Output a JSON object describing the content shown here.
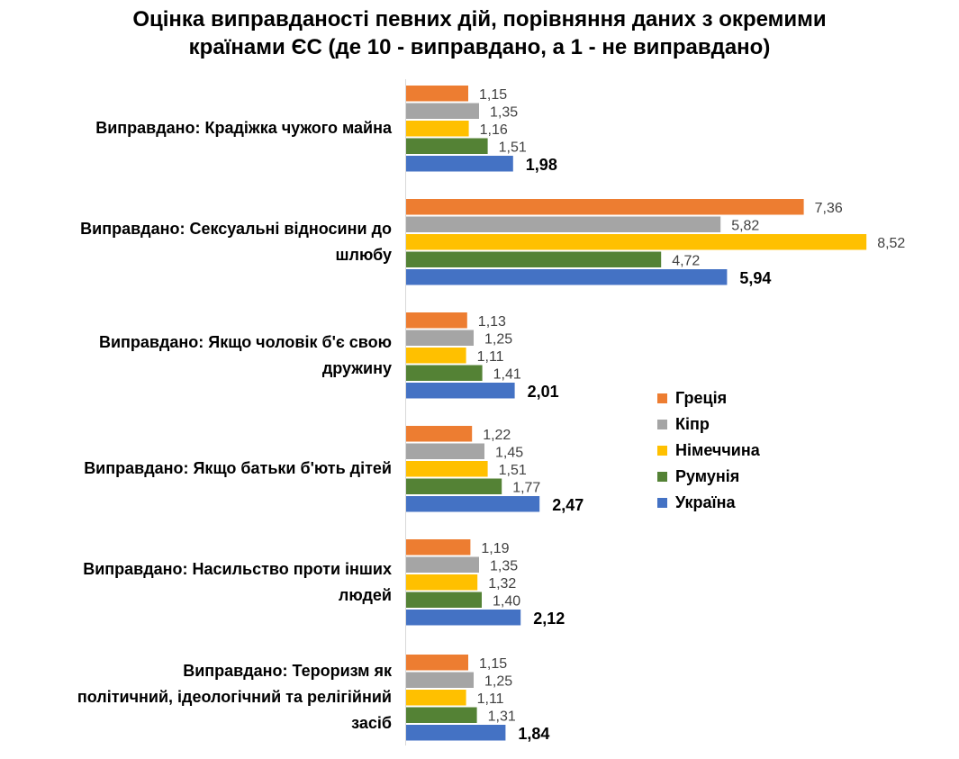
{
  "chart_data": {
    "type": "bar",
    "orientation": "horizontal",
    "title_lines": [
      "Оцінка виправданості певних дій, порівняння даних з окремими",
      "країнами ЄС (де 10 - виправдано, а 1 - не виправдано)"
    ],
    "categories": [
      [
        "Виправдано: Крадіжка чужого майна"
      ],
      [
        "Виправдано: Сексуальні відносини до",
        "шлюбу"
      ],
      [
        "Виправдано: Якщо чоловік б'є свою",
        "дружину"
      ],
      [
        "Виправдано: Якщо батьки б'ють дітей"
      ],
      [
        "Виправдано: Насильство проти інших",
        "людей"
      ],
      [
        "Виправдано: Тероризм як",
        "політичний, ідеологічний та релігійний",
        "засіб"
      ]
    ],
    "series": [
      {
        "name": "Греція",
        "color": "#ED7D31",
        "values": [
          "1,15",
          "7,36",
          "1,13",
          "1,22",
          "1,19",
          "1,15"
        ]
      },
      {
        "name": "Кіпр",
        "color": "#A5A5A5",
        "values": [
          "1,35",
          "5,82",
          "1,25",
          "1,45",
          "1,35",
          "1,25"
        ]
      },
      {
        "name": "Німеччина",
        "color": "#FFC000",
        "values": [
          "1,16",
          "8,52",
          "1,11",
          "1,51",
          "1,32",
          "1,11"
        ]
      },
      {
        "name": "Румунія",
        "color": "#548235",
        "values": [
          "1,51",
          "4,72",
          "1,41",
          "1,77",
          "1,40",
          "1,31"
        ]
      },
      {
        "name": "Україна",
        "color": "#4472C4",
        "values": [
          "1,98",
          "5,94",
          "2,01",
          "2,47",
          "2,12",
          "1,84"
        ]
      }
    ],
    "xlim": [
      0,
      10
    ],
    "grid": false,
    "legend_position": "right"
  }
}
